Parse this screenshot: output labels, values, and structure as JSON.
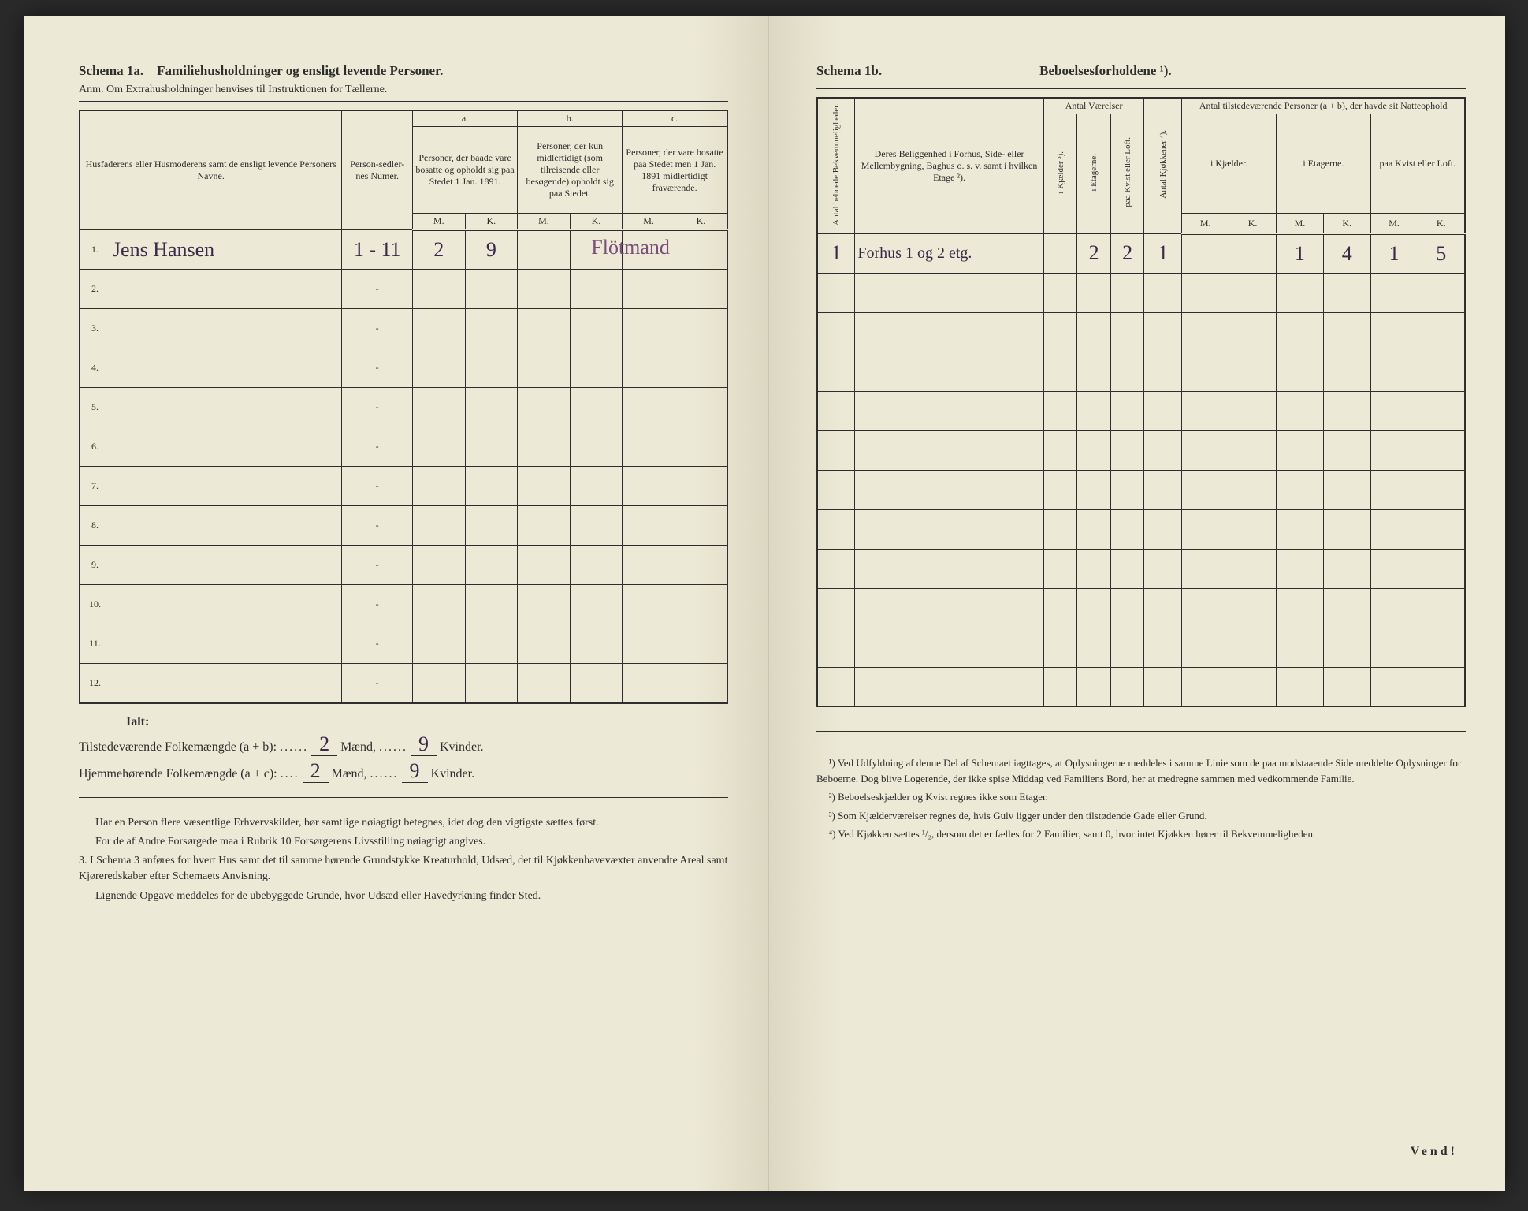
{
  "left": {
    "schema_label": "Schema 1a.",
    "schema_title": "Familiehusholdninger og ensligt levende Personer.",
    "anm": "Anm. Om Extrahusholdninger henvises til Instruktionen for Tællerne.",
    "col_name": "Husfaderens eller Husmoderens samt de ensligt levende Personers Navne.",
    "col_personsedler": "Person-sedler-nes Numer.",
    "group_a": "a.",
    "group_b": "b.",
    "group_c": "c.",
    "col_a": "Personer, der baade vare bosatte og opholdt sig paa Stedet 1 Jan. 1891.",
    "col_b": "Personer, der kun midlertidigt (som tilreisende eller besøgende) opholdt sig paa Stedet.",
    "col_c": "Personer, der vare bosatte paa Stedet men 1 Jan. 1891 midlertidigt fraværende.",
    "mk_m": "M.",
    "mk_k": "K.",
    "rows_count": 12,
    "row1": {
      "num": "1.",
      "name": "Jens Hansen",
      "personsedler": "1 - 11",
      "a_m": "2",
      "a_k": "9",
      "annotation": "Flötmand"
    },
    "ialt": "Ialt:",
    "tot1_label": "Tilstedeværende Folkemængde (a + b):",
    "tot1_m": "2",
    "tot1_maend": "Mænd,",
    "tot1_k": "9",
    "tot1_kvinder": "Kvinder.",
    "tot2_label": "Hjemmehørende Folkemængde (a + c):",
    "tot2_m": "2",
    "tot2_maend": "Mænd,",
    "tot2_k": "9",
    "tot2_kvinder": "Kvinder.",
    "note1": "Har en Person flere væsentlige Erhvervskilder, bør samtlige nøiagtigt betegnes, idet dog den vigtigste sættes først.",
    "note2": "For de af Andre Forsørgede maa i Rubrik 10 Forsørgerens Livsstilling nøiagtigt angives.",
    "note3_num": "3.",
    "note3": "I Schema 3 anføres for hvert Hus samt det til samme hørende Grundstykke Kreaturhold, Udsæd, det til Kjøkkenhavevæxter anvendte Areal samt Kjøreredskaber efter Schemaets Anvisning.",
    "note4": "Lignende Opgave meddeles for de ubebyggede Grunde, hvor Udsæd eller Havedyrkning finder Sted."
  },
  "right": {
    "schema_label": "Schema 1b.",
    "schema_title": "Beboelsesforholdene ¹).",
    "col_bekv": "Antal beboede Bekvemmeligheder.",
    "col_belig": "Deres Beliggenhed i Forhus, Side- eller Mellembygning, Baghus o. s. v. samt i hvilken Etage ²).",
    "grp_vaerelser": "Antal Værelser",
    "col_kjelder": "i Kjælder ³).",
    "col_etagerne": "i Etagerne.",
    "col_kvist": "paa Kvist eller Loft.",
    "col_kjokken": "Antal Kjøkkener ⁴).",
    "grp_personer": "Antal tilstedeværende Personer (a + b), der havde sit Natteophold",
    "col_p_kjelder": "i Kjælder.",
    "col_p_etagerne": "i Etagerne.",
    "col_p_kvist": "paa Kvist eller Loft.",
    "mk_m": "M.",
    "mk_k": "K.",
    "rows_count": 12,
    "row1": {
      "bekv": "1",
      "belig": "Forhus 1 og 2 etg.",
      "v_kjelder": "",
      "v_etagerne": "2",
      "v_kvist": "2",
      "kjokken": "1",
      "p_kj_m": "",
      "p_kj_k": "",
      "p_et_m": "1",
      "p_et_k": "4",
      "p_kv_m": "1",
      "p_kv_k": "5"
    },
    "fn1": "¹) Ved Udfyldning af denne Del af Schemaet iagttages, at Oplysningerne meddeles i samme Linie som de paa modstaaende Side meddelte Oplysninger for Beboerne. Dog blive Logerende, der ikke spise Middag ved Familiens Bord, her at medregne sammen med vedkommende Familie.",
    "fn2": "²) Beboelseskjælder og Kvist regnes ikke som Etager.",
    "fn3": "³) Som Kjælderværelser regnes de, hvis Gulv ligger under den tilstødende Gade eller Grund.",
    "fn4": "⁴) Ved Kjøkken sættes ¹/₂, dersom det er fælles for 2 Familier, samt 0, hvor intet Kjøkken hører til Bekvemmeligheden.",
    "vend": "Vend!"
  },
  "colors": {
    "paper": "#ece9d6",
    "ink": "#2e2e2e",
    "handwriting": "#3a2a4a",
    "purple_ink": "#7a4f7a"
  }
}
